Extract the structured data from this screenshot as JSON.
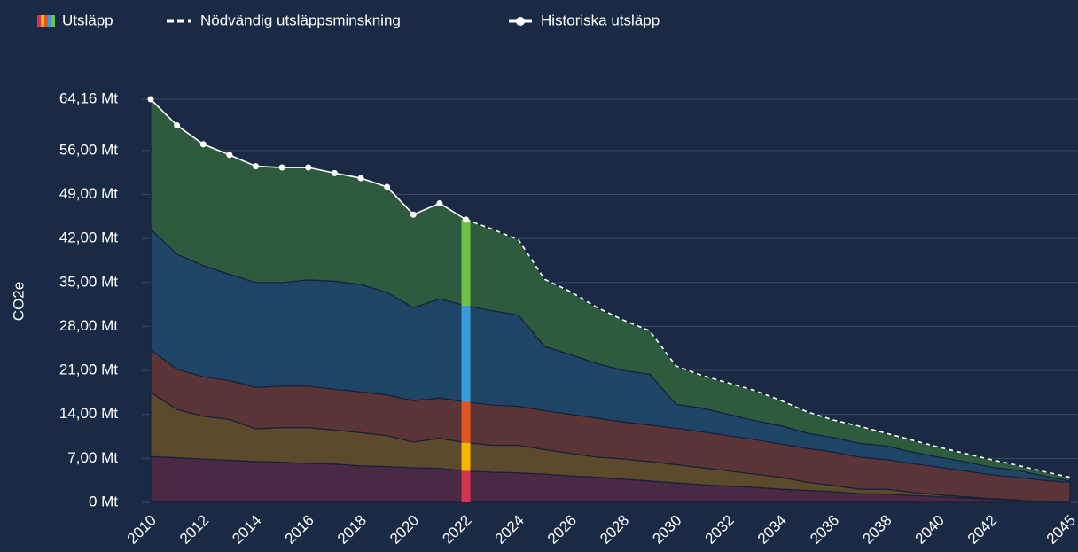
{
  "chart_data": {
    "type": "stacked_area",
    "y_label": "CO2e",
    "legend": [
      "Utsläpp",
      "Nödvändig utsläppsminskning",
      "Historiska utsläpp"
    ],
    "x": [
      2010,
      2011,
      2012,
      2013,
      2014,
      2015,
      2016,
      2017,
      2018,
      2019,
      2020,
      2021,
      2022,
      2023,
      2024,
      2025,
      2026,
      2027,
      2028,
      2029,
      2030,
      2031,
      2032,
      2033,
      2034,
      2035,
      2036,
      2037,
      2038,
      2039,
      2040,
      2041,
      2042,
      2043,
      2044,
      2045
    ],
    "xlim": [
      2010,
      2045
    ],
    "xticks": [
      2010,
      2012,
      2014,
      2016,
      2018,
      2020,
      2022,
      2024,
      2026,
      2028,
      2030,
      2032,
      2034,
      2036,
      2038,
      2040,
      2042,
      2045
    ],
    "ylim": [
      0,
      64.16
    ],
    "yticks": [
      {
        "value": 0,
        "label": "0 Mt"
      },
      {
        "value": 7,
        "label": "7,00 Mt"
      },
      {
        "value": 14,
        "label": "14,00 Mt"
      },
      {
        "value": 21,
        "label": "21,00 Mt"
      },
      {
        "value": 28,
        "label": "28,00 Mt"
      },
      {
        "value": 35,
        "label": "35,00 Mt"
      },
      {
        "value": 42,
        "label": "42,00 Mt"
      },
      {
        "value": 49,
        "label": "49,00 Mt"
      },
      {
        "value": 56,
        "label": "56,00 Mt"
      },
      {
        "value": 64.16,
        "label": "64,16 Mt"
      }
    ],
    "grid": true,
    "series": [
      {
        "color": "#4a2944",
        "highlight_color": "#d3334c",
        "values": [
          7.3,
          7.1,
          6.9,
          6.7,
          6.5,
          6.4,
          6.2,
          6.1,
          5.8,
          5.7,
          5.5,
          5.4,
          5.0,
          4.8,
          4.7,
          4.5,
          4.2,
          4.0,
          3.7,
          3.4,
          3.1,
          2.8,
          2.6,
          2.4,
          2.1,
          1.9,
          1.7,
          1.4,
          1.3,
          1.1,
          0.9,
          0.7,
          0.5,
          0.3,
          0.1,
          0
        ]
      },
      {
        "color": "#5d4a2c",
        "highlight_color": "#f7b500",
        "values": [
          10.2,
          7.7,
          6.8,
          6.5,
          5.2,
          5.5,
          5.7,
          5.4,
          5.3,
          4.9,
          4.1,
          4.8,
          4.5,
          4.3,
          4.4,
          3.9,
          3.6,
          3.2,
          3.2,
          3.1,
          2.9,
          2.7,
          2.4,
          2.1,
          1.9,
          1.3,
          1.0,
          0.7,
          0.8,
          0.5,
          0.3,
          0.2,
          0.1,
          0.1,
          0,
          0
        ]
      },
      {
        "color": "#5a3437",
        "highlight_color": "#e2561f",
        "values": [
          6.8,
          6.4,
          6.3,
          6.2,
          6.6,
          6.6,
          6.6,
          6.5,
          6.5,
          6.5,
          6.6,
          6.4,
          6.5,
          6.4,
          6.2,
          6.2,
          6.2,
          6.2,
          5.9,
          5.8,
          5.8,
          5.7,
          5.6,
          5.5,
          5.3,
          5.4,
          5.3,
          5.1,
          4.7,
          4.6,
          4.4,
          4.1,
          3.8,
          3.6,
          3.4,
          3.2
        ]
      },
      {
        "color": "#1f4566",
        "highlight_color": "#3a9bdb",
        "values": [
          19.2,
          18.3,
          17.7,
          16.9,
          16.7,
          16.5,
          16.9,
          17.2,
          17.1,
          16.3,
          14.8,
          15.8,
          15.3,
          15.0,
          14.5,
          10.2,
          9.5,
          8.7,
          8.2,
          8.1,
          3.8,
          3.8,
          3.4,
          3.0,
          2.9,
          2.4,
          2.3,
          2.2,
          2.2,
          1.8,
          1.6,
          1.5,
          1.2,
          1.1,
          0.7,
          0.2
        ]
      },
      {
        "color": "#2e5a3e",
        "highlight_color": "#6cc24a",
        "values": [
          20.66,
          20.5,
          19.3,
          19.0,
          18.5,
          18.3,
          17.9,
          17.2,
          16.9,
          16.8,
          14.8,
          15.2,
          13.7,
          13.0,
          12.0,
          10.7,
          10.0,
          8.9,
          8.0,
          6.9,
          6.1,
          5.2,
          5.0,
          4.8,
          4.0,
          3.4,
          2.8,
          2.7,
          2.0,
          1.9,
          1.6,
          1.3,
          1.2,
          0.8,
          0.7,
          0.6
        ]
      }
    ],
    "highlight_x": 2022,
    "lines": [
      {
        "name": "Nödvändig utsläppsminskning",
        "color": "#ffffff",
        "dashed": true,
        "values": [
          null,
          null,
          null,
          null,
          null,
          null,
          null,
          null,
          null,
          null,
          null,
          null,
          45,
          43.5,
          41.8,
          35.5,
          33.5,
          31,
          29,
          27.3,
          21.7,
          20.2,
          19,
          17.8,
          16.2,
          14.4,
          13.1,
          12.1,
          11,
          9.9,
          8.8,
          7.8,
          6.8,
          5.9,
          4.9,
          4.0
        ]
      },
      {
        "name": "Historiska utsläpp",
        "color": "#ffffff",
        "dashed": false,
        "markers": true,
        "values": [
          64.16,
          60,
          57,
          55.3,
          53.5,
          53.3,
          53.3,
          52.4,
          51.6,
          50.2,
          45.8,
          47.6,
          45,
          null,
          null,
          null,
          null,
          null,
          null,
          null,
          null,
          null,
          null,
          null,
          null,
          null,
          null,
          null,
          null,
          null,
          null,
          null,
          null,
          null,
          null,
          null
        ]
      }
    ]
  }
}
